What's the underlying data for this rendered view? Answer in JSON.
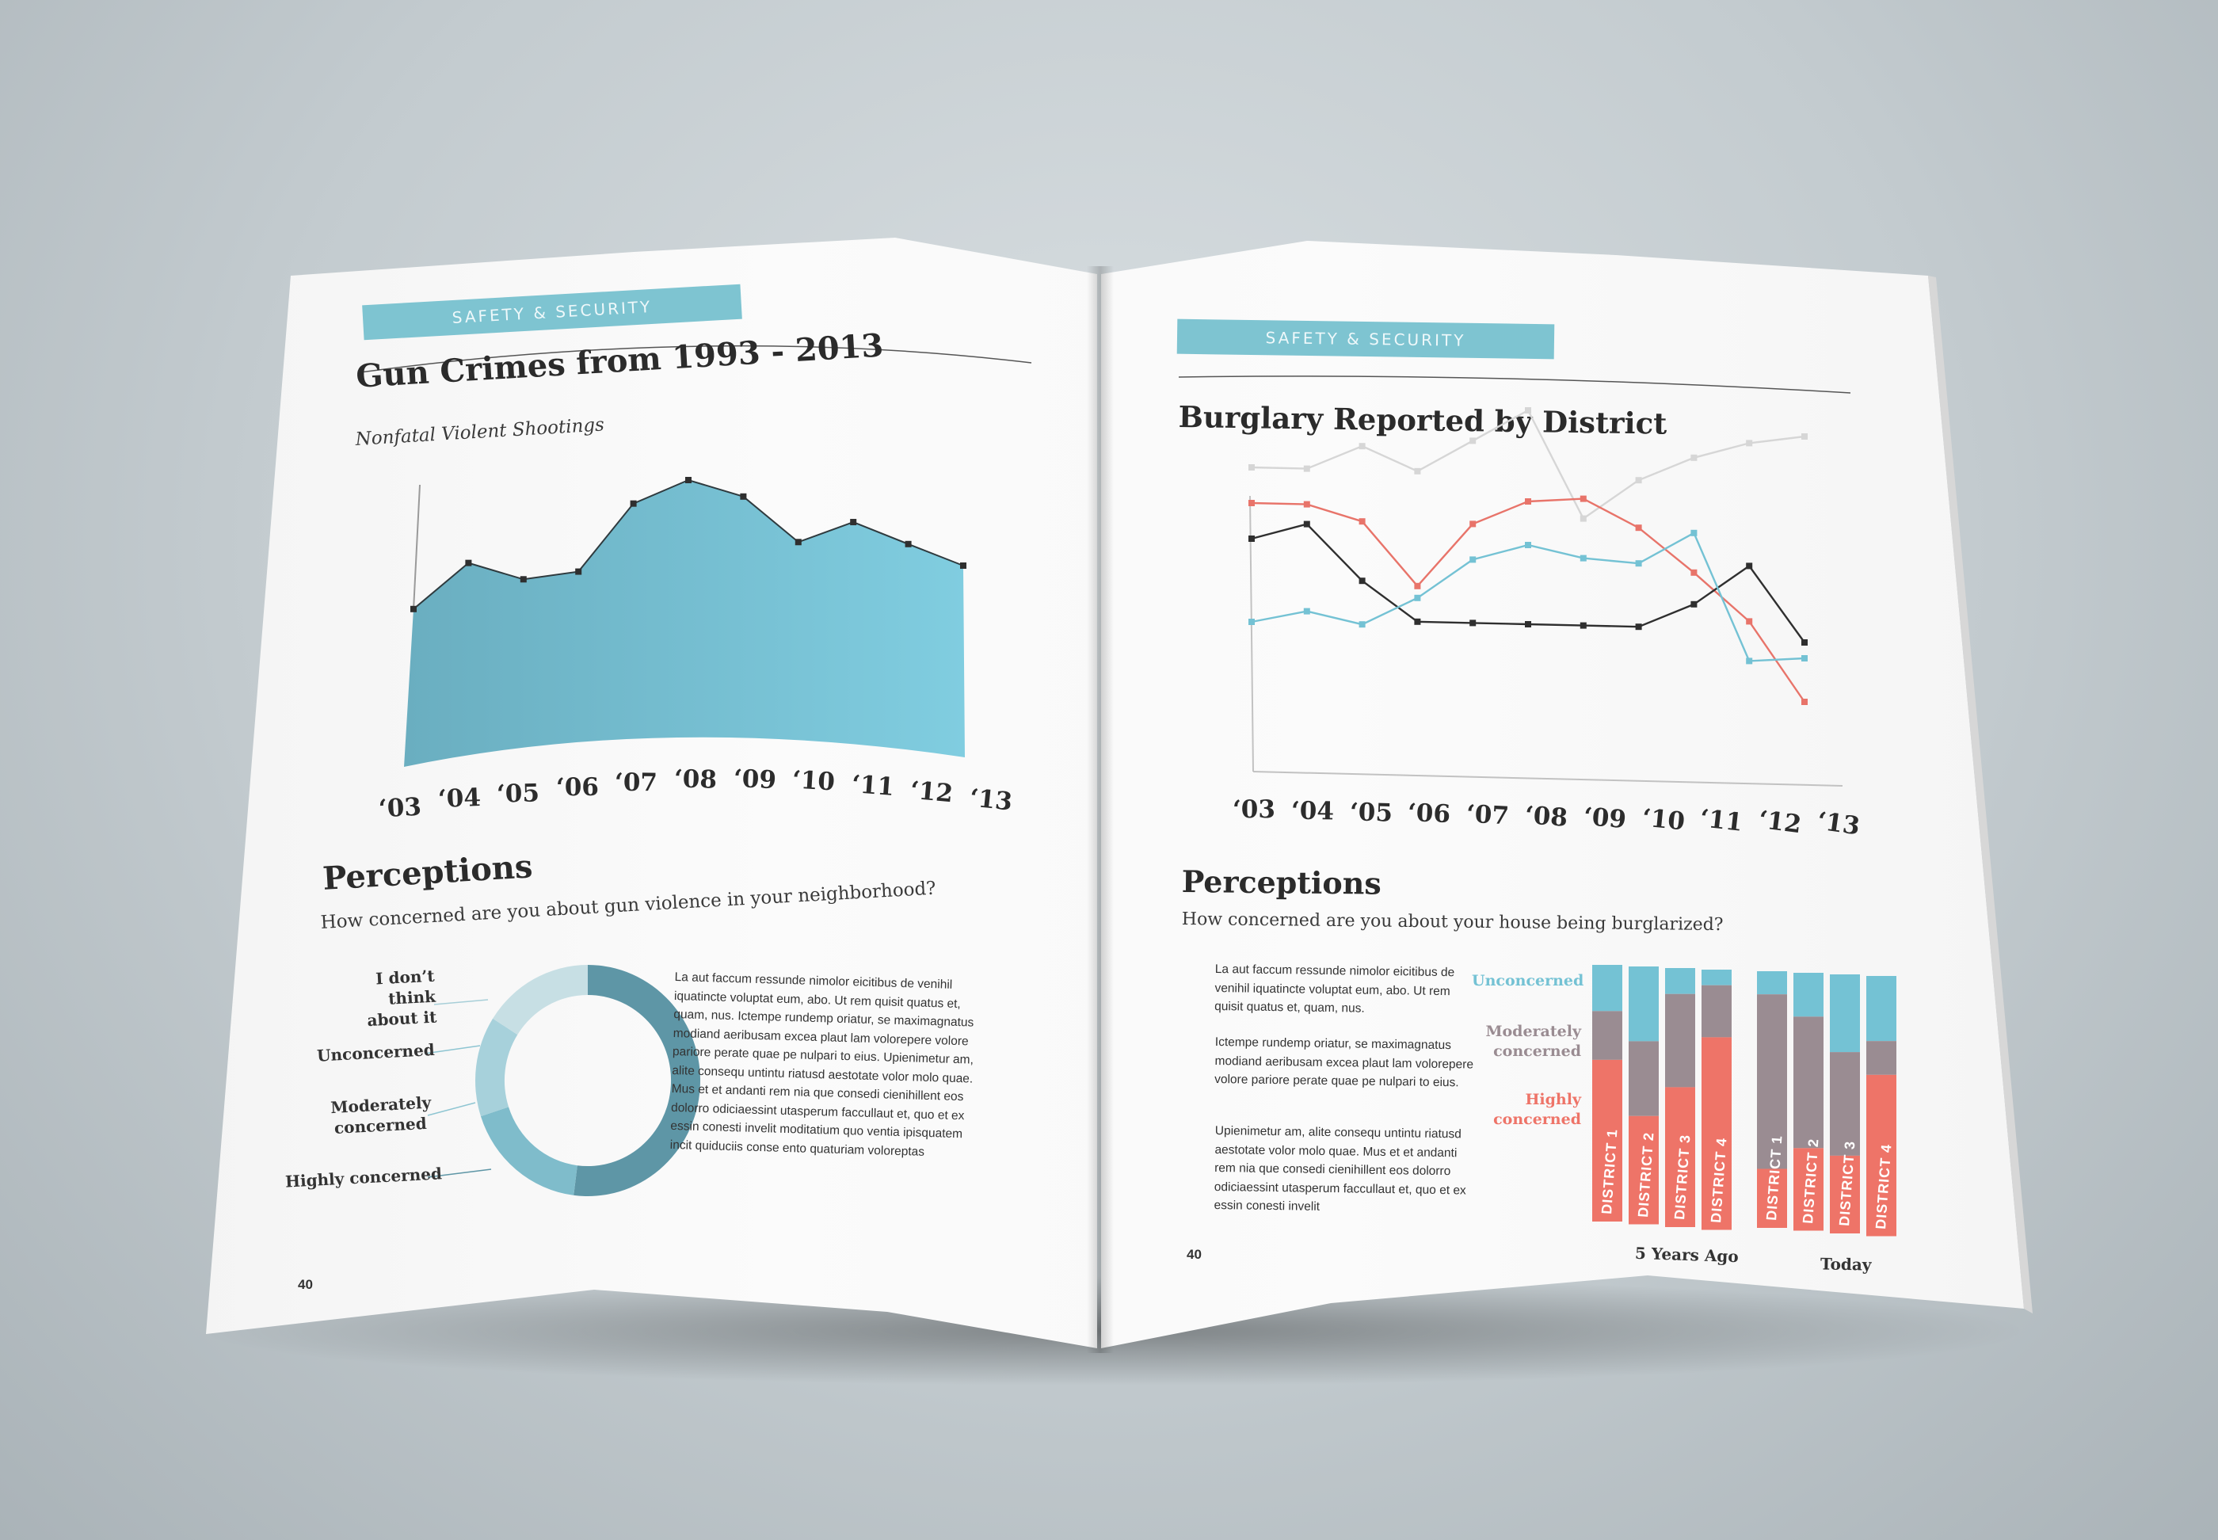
{
  "left_page": {
    "section_label": "SAFETY & SECURITY",
    "title": "Gun Crimes from 1993 - 2013",
    "subtitle": "Nonfatal Violent Shootings",
    "chart_data": {
      "type": "area",
      "categories": [
        "‘03",
        "‘04",
        "‘05",
        "‘06",
        "‘07",
        "‘08",
        "‘09",
        "‘10",
        "‘11",
        "‘12",
        "‘13"
      ],
      "values": [
        48,
        61,
        56,
        58,
        78,
        85,
        80,
        66,
        72,
        65,
        58
      ],
      "ylim": [
        0,
        100
      ],
      "color": "#74bfd2"
    },
    "perceptions_title": "Perceptions",
    "perceptions_question": "How concerned are you about gun violence in your neighborhood?",
    "donut_data": {
      "type": "pie",
      "labels": [
        "Highly concerned",
        "Moderately concerned",
        "Unconcerned",
        "I don’t think about it"
      ],
      "values": [
        52,
        18,
        14,
        16
      ],
      "colors": [
        "#5e96a6",
        "#7fbccb",
        "#a7d1db",
        "#c7dfe4"
      ]
    },
    "donut_labels": {
      "dont_think": "I don’t think about it",
      "unconcerned": "Unconcerned",
      "moderately": "Moderately concerned",
      "highly": "Highly concerned"
    },
    "body_text": "La aut faccum ressunde nimolor eicitibus de venihil iquatincte voluptat eum, abo. Ut rem quisit quatus et, quam, nus. Ictempe rundemp oriatur, se maximagnatus modiand aeribusam excea plaut lam volorepere volore pariore perate quae pe nulpari to eius. Upienimetur am, alite consequ untintu riatusd aestotate volor molo quae. Mus et et andanti rem nia que consedi cienihillent eos dolorro odiciaessint utasperum faccullaut et, quo et ex essin conesti invelit moditatium quo ventia ipisquatem incit quiduciis conse ento quaturiam voloreptas",
    "page_number": "40"
  },
  "right_page": {
    "section_label": "SAFETY & SECURITY",
    "title": "Burglary Reported by District",
    "chart_data": {
      "type": "line",
      "categories": [
        "‘03",
        "‘04",
        "‘05",
        "‘06",
        "‘07",
        "‘08",
        "‘09",
        "‘10",
        "‘11",
        "‘12",
        "‘13"
      ],
      "ylim": [
        0,
        100
      ],
      "series": [
        {
          "values": [
            76,
            76,
            82,
            76,
            84,
            92,
            65,
            75,
            81,
            85,
            87
          ],
          "color": "#d6d6d6"
        },
        {
          "values": [
            67,
            67,
            63,
            47,
            63,
            69,
            70,
            63,
            52,
            40,
            20
          ],
          "color": "#e8746a"
        },
        {
          "values": [
            58,
            62,
            48,
            38,
            38,
            38,
            38,
            38,
            44,
            54,
            35
          ],
          "color": "#2f2f2f"
        },
        {
          "values": [
            37,
            40,
            37,
            44,
            54,
            58,
            55,
            54,
            62,
            30,
            31
          ],
          "color": "#74c2d4"
        }
      ]
    },
    "perceptions_title": "Perceptions",
    "perceptions_question": "How concerned are you about your house being burglarized?",
    "body_text_1": "La aut faccum ressunde nimolor eicitibus de venihil iquatincte voluptat eum, abo. Ut rem quisit quatus et, quam, nus.",
    "body_text_2": "Ictempe rundemp oriatur, se maximagnatus modiand aeribusam excea plaut lam volorepere volore pariore perate quae pe nulpari to eius.",
    "body_text_3": "Upienimetur am, alite consequ untintu riatusd aestotate volor molo quae. Mus et et andanti rem nia que consedi cienihillent eos dolorro odiciaessint utasperum faccullaut et, quo et ex essin conesti invelit",
    "legend": {
      "unconcerned": "Unconcerned",
      "moderately": "Moderately concerned",
      "highly": "Highly concerned"
    },
    "legend_colors": {
      "unconcerned": "#74c2d4",
      "moderately": "#9a8c92",
      "highly": "#ee7468"
    },
    "stacked_data": {
      "type": "bar",
      "groups": [
        {
          "name": "5 Years Ago",
          "bars": [
            {
              "label": "DISTRICT 1",
              "unconcerned": 18,
              "moderately": 19,
              "highly": 63
            },
            {
              "label": "DISTRICT 2",
              "unconcerned": 29,
              "moderately": 29,
              "highly": 42
            },
            {
              "label": "DISTRICT 3",
              "unconcerned": 10,
              "moderately": 36,
              "highly": 54
            },
            {
              "label": "DISTRICT 4",
              "unconcerned": 6,
              "moderately": 20,
              "highly": 74
            }
          ]
        },
        {
          "name": "Today",
          "bars": [
            {
              "label": "DISTRICT 1",
              "unconcerned": 9,
              "moderately": 68,
              "highly": 23
            },
            {
              "label": "DISTRICT 2",
              "unconcerned": 17,
              "moderately": 51,
              "highly": 32
            },
            {
              "label": "DISTRICT 3",
              "unconcerned": 30,
              "moderately": 40,
              "highly": 30
            },
            {
              "label": "DISTRICT 4",
              "unconcerned": 25,
              "moderately": 13,
              "highly": 62
            }
          ]
        }
      ]
    },
    "page_number": "40"
  }
}
